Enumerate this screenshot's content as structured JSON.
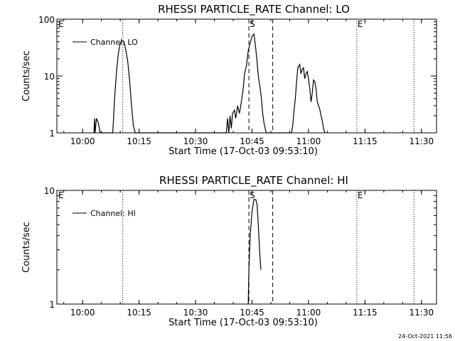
{
  "footer": {
    "date": "24-Oct-2021 11:56"
  },
  "chart_data": [
    {
      "type": "line",
      "title": "RHESSI PARTICLE_RATE Channel: LO",
      "xlabel": "Start Time (17-Oct-03 09:53:10)",
      "ylabel": "Counts/sec",
      "yscale": "log",
      "ylim": [
        1,
        100
      ],
      "ytick_labels": [
        "1",
        "10",
        "100"
      ],
      "xlim": [
        "09:53:10",
        "11:34:00"
      ],
      "xtick_labels": [
        "10:00",
        "10:15",
        "10:30",
        "10:45",
        "11:00",
        "11:15",
        "11:30"
      ],
      "grid": false,
      "legend": "top-left",
      "series": [
        {
          "name": "Channel: LO",
          "x": [
            "10:03:00",
            "10:03:10",
            "10:03:20",
            "10:03:40",
            "10:04:10",
            "10:04:40",
            "10:08:00",
            "10:08:30",
            "10:09:00",
            "10:09:30",
            "10:10:00",
            "10:10:30",
            "10:11:00",
            "10:11:30",
            "10:12:00",
            "10:12:30",
            "10:13:00",
            "10:13:30",
            "10:14:00",
            "10:14:30",
            "10:38:10",
            "10:38:30",
            "10:38:50",
            "10:39:10",
            "10:39:30",
            "10:39:50",
            "10:40:20",
            "10:40:40",
            "10:41:10",
            "10:41:40",
            "10:42:10",
            "10:42:40",
            "10:43:00",
            "10:43:30",
            "10:44:00",
            "10:44:30",
            "10:45:00",
            "10:45:30",
            "10:46:00",
            "10:46:20",
            "10:46:40",
            "10:47:10",
            "10:47:30",
            "10:47:50",
            "10:48:10",
            "10:48:30",
            "10:48:45",
            "10:55:30",
            "10:55:50",
            "10:56:10",
            "10:56:30",
            "10:56:50",
            "10:57:10",
            "10:57:40",
            "10:58:00",
            "10:58:20",
            "10:58:40",
            "10:59:00",
            "10:59:20",
            "10:59:40",
            "11:00:00",
            "11:00:20",
            "11:00:40",
            "11:01:00",
            "11:01:20",
            "11:01:40",
            "11:02:00",
            "11:02:20",
            "11:02:40",
            "11:03:00",
            "11:03:20",
            "11:03:40",
            "11:04:00",
            "11:04:20"
          ],
          "values": [
            1,
            1.8,
            1,
            1.8,
            1.5,
            1,
            1,
            4,
            12,
            25,
            38,
            42,
            40,
            28,
            18,
            8,
            3,
            1.3,
            1,
            1,
            1,
            1.8,
            1,
            2,
            1.2,
            2.2,
            2.5,
            1.8,
            3,
            2.2,
            3.5,
            6,
            11,
            15,
            28,
            38,
            50,
            55,
            30,
            18,
            10,
            6,
            4,
            2.2,
            1.5,
            1.2,
            1,
            1,
            1.4,
            2.5,
            4,
            8,
            14,
            16,
            11,
            13,
            14,
            9,
            11,
            12,
            9,
            6,
            3.5,
            5,
            8.5,
            8,
            6,
            3.5,
            3,
            2.6,
            2,
            1.6,
            1.2,
            1
          ]
        }
      ],
      "vlines_dotted": [
        "10:10:40",
        "11:12:50",
        "11:28:00"
      ],
      "vlines_dashed": [
        "10:44:10",
        "10:50:30"
      ],
      "markers": [
        {
          "label": "E",
          "x": "09:53:10"
        },
        {
          "label": "S",
          "x": "10:44:10"
        },
        {
          "label": "E",
          "x": "11:12:50"
        }
      ]
    },
    {
      "type": "line",
      "title": "RHESSI PARTICLE_RATE Channel: HI",
      "xlabel": "Start Time (17-Oct-03 09:53:10)",
      "ylabel": "Counts/sec",
      "yscale": "log",
      "ylim": [
        1,
        10
      ],
      "ytick_labels": [
        "1",
        "10"
      ],
      "xlim": [
        "09:53:10",
        "11:34:00"
      ],
      "xtick_labels": [
        "10:00",
        "10:15",
        "10:30",
        "10:45",
        "11:00",
        "11:15",
        "11:30"
      ],
      "grid": false,
      "legend": "top-left",
      "series": [
        {
          "name": "Channel: HI",
          "x": [
            "10:44:00",
            "10:44:10",
            "10:44:30",
            "10:45:00",
            "10:45:30",
            "10:46:00",
            "10:46:20",
            "10:46:40",
            "10:47:00",
            "10:47:20"
          ],
          "values": [
            1,
            2,
            4,
            6.5,
            8.3,
            8.3,
            7.5,
            5,
            3,
            2
          ]
        }
      ],
      "vlines_dotted": [
        "10:10:40",
        "11:12:50",
        "11:28:00"
      ],
      "vlines_dashed": [
        "10:44:10",
        "10:50:30"
      ],
      "markers": [
        {
          "label": "E",
          "x": "09:53:10"
        },
        {
          "label": "S",
          "x": "10:44:10"
        },
        {
          "label": "E",
          "x": "11:12:50"
        }
      ]
    }
  ]
}
